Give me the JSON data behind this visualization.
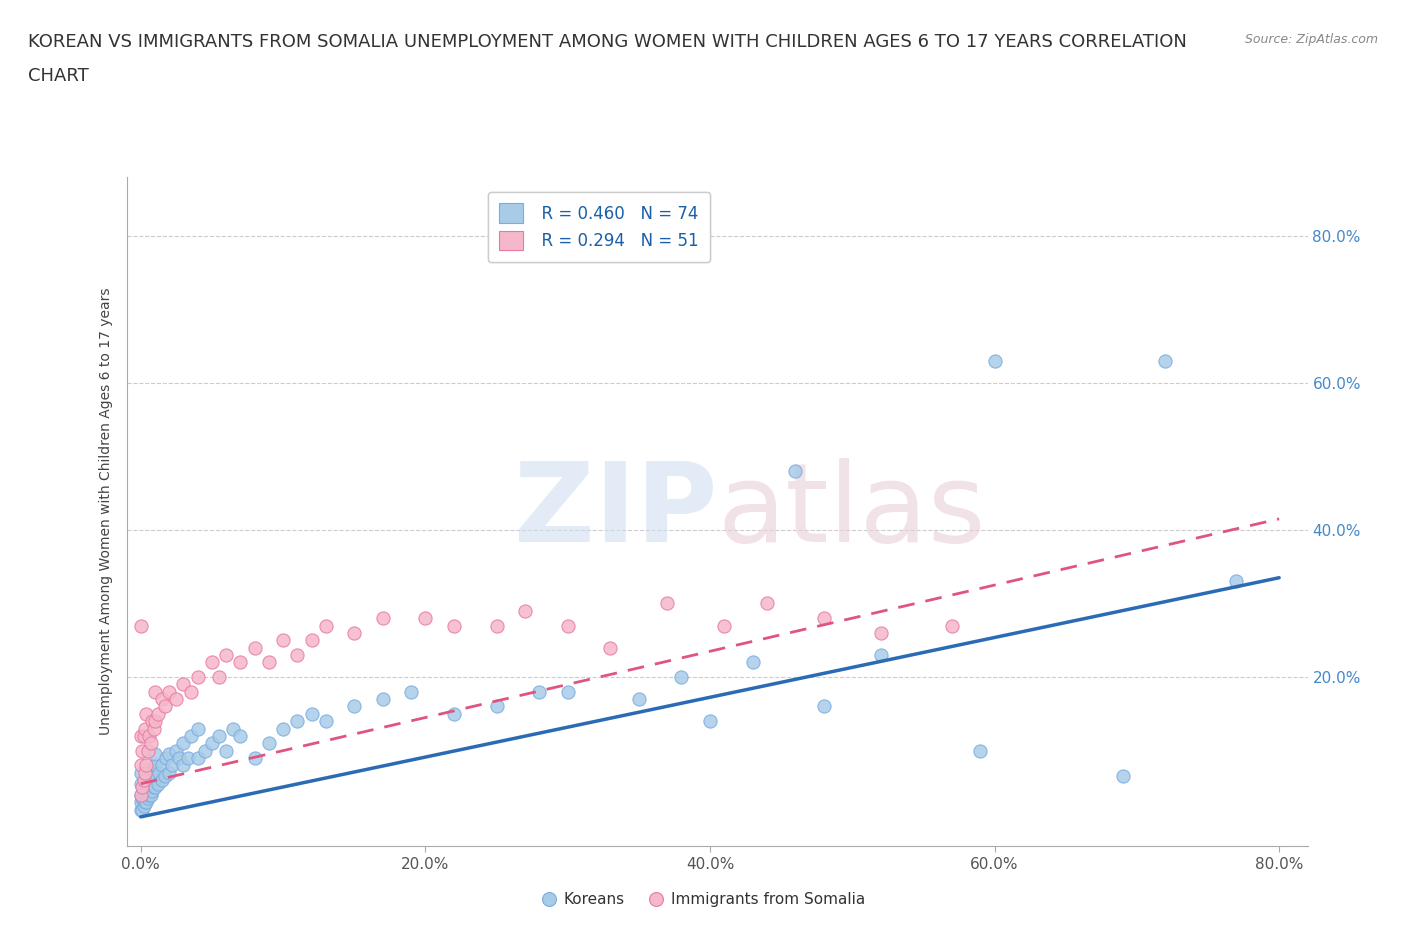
{
  "title_line1": "KOREAN VS IMMIGRANTS FROM SOMALIA UNEMPLOYMENT AMONG WOMEN WITH CHILDREN AGES 6 TO 17 YEARS CORRELATION",
  "title_line2": "CHART",
  "source": "Source: ZipAtlas.com",
  "ylabel": "Unemployment Among Women with Children Ages 6 to 17 years",
  "xlim": [
    -0.01,
    0.82
  ],
  "ylim": [
    -0.03,
    0.88
  ],
  "xtick_vals": [
    0.0,
    0.2,
    0.4,
    0.6,
    0.8
  ],
  "xtick_labels": [
    "0.0%",
    "20.0%",
    "40.0%",
    "60.0%",
    "80.0%"
  ],
  "ytick_vals": [
    0.2,
    0.4,
    0.6,
    0.8
  ],
  "ytick_labels": [
    "20.0%",
    "40.0%",
    "60.0%",
    "80.0%"
  ],
  "blue_color": "#a8cce8",
  "blue_edge_color": "#7aace0",
  "pink_color": "#f5b8cb",
  "pink_edge_color": "#e87aa0",
  "blue_line_color": "#2b6bb5",
  "pink_line_color": "#e05580",
  "watermark_color": "#d0dff0",
  "watermark_color2": "#e8d0d8",
  "legend_label1": "Koreans",
  "legend_label2": "Immigrants from Somalia",
  "title_fontsize": 13,
  "axis_label_fontsize": 10,
  "tick_fontsize": 11,
  "right_tick_color": "#4488cc",
  "blue_scatter_x": [
    0.0,
    0.0,
    0.0,
    0.0,
    0.0,
    0.001,
    0.001,
    0.002,
    0.002,
    0.003,
    0.003,
    0.004,
    0.004,
    0.005,
    0.005,
    0.006,
    0.006,
    0.007,
    0.007,
    0.008,
    0.008,
    0.009,
    0.01,
    0.01,
    0.01,
    0.01,
    0.012,
    0.013,
    0.015,
    0.015,
    0.017,
    0.018,
    0.02,
    0.02,
    0.022,
    0.025,
    0.027,
    0.03,
    0.03,
    0.033,
    0.035,
    0.04,
    0.04,
    0.045,
    0.05,
    0.055,
    0.06,
    0.065,
    0.07,
    0.08,
    0.09,
    0.1,
    0.11,
    0.12,
    0.13,
    0.15,
    0.17,
    0.19,
    0.22,
    0.25,
    0.28,
    0.3,
    0.35,
    0.38,
    0.4,
    0.43,
    0.46,
    0.48,
    0.52,
    0.59,
    0.6,
    0.69,
    0.72,
    0.77
  ],
  "blue_scatter_y": [
    0.02,
    0.03,
    0.04,
    0.055,
    0.07,
    0.02,
    0.035,
    0.025,
    0.045,
    0.03,
    0.05,
    0.03,
    0.055,
    0.035,
    0.06,
    0.04,
    0.065,
    0.04,
    0.07,
    0.045,
    0.075,
    0.05,
    0.05,
    0.065,
    0.08,
    0.095,
    0.055,
    0.07,
    0.06,
    0.08,
    0.065,
    0.09,
    0.07,
    0.095,
    0.08,
    0.1,
    0.09,
    0.08,
    0.11,
    0.09,
    0.12,
    0.09,
    0.13,
    0.1,
    0.11,
    0.12,
    0.1,
    0.13,
    0.12,
    0.09,
    0.11,
    0.13,
    0.14,
    0.15,
    0.14,
    0.16,
    0.17,
    0.18,
    0.15,
    0.16,
    0.18,
    0.18,
    0.17,
    0.2,
    0.14,
    0.22,
    0.48,
    0.16,
    0.23,
    0.1,
    0.63,
    0.065,
    0.63,
    0.33
  ],
  "pink_scatter_x": [
    0.0,
    0.0,
    0.0,
    0.0,
    0.001,
    0.001,
    0.002,
    0.002,
    0.003,
    0.003,
    0.004,
    0.004,
    0.005,
    0.006,
    0.007,
    0.008,
    0.009,
    0.01,
    0.01,
    0.012,
    0.015,
    0.017,
    0.02,
    0.025,
    0.03,
    0.035,
    0.04,
    0.05,
    0.055,
    0.06,
    0.07,
    0.08,
    0.09,
    0.1,
    0.11,
    0.12,
    0.13,
    0.15,
    0.17,
    0.2,
    0.22,
    0.25,
    0.27,
    0.3,
    0.33,
    0.37,
    0.41,
    0.44,
    0.48,
    0.52,
    0.57
  ],
  "pink_scatter_y": [
    0.04,
    0.08,
    0.12,
    0.27,
    0.05,
    0.1,
    0.06,
    0.12,
    0.07,
    0.13,
    0.08,
    0.15,
    0.1,
    0.12,
    0.11,
    0.14,
    0.13,
    0.14,
    0.18,
    0.15,
    0.17,
    0.16,
    0.18,
    0.17,
    0.19,
    0.18,
    0.2,
    0.22,
    0.2,
    0.23,
    0.22,
    0.24,
    0.22,
    0.25,
    0.23,
    0.25,
    0.27,
    0.26,
    0.28,
    0.28,
    0.27,
    0.27,
    0.29,
    0.27,
    0.24,
    0.3,
    0.27,
    0.3,
    0.28,
    0.26,
    0.27
  ],
  "blue_line_x0": 0.0,
  "blue_line_y0": 0.01,
  "blue_line_x1": 0.8,
  "blue_line_y1": 0.335,
  "pink_line_x0": 0.0,
  "pink_line_y0": 0.055,
  "pink_line_x1": 0.8,
  "pink_line_y1": 0.415
}
